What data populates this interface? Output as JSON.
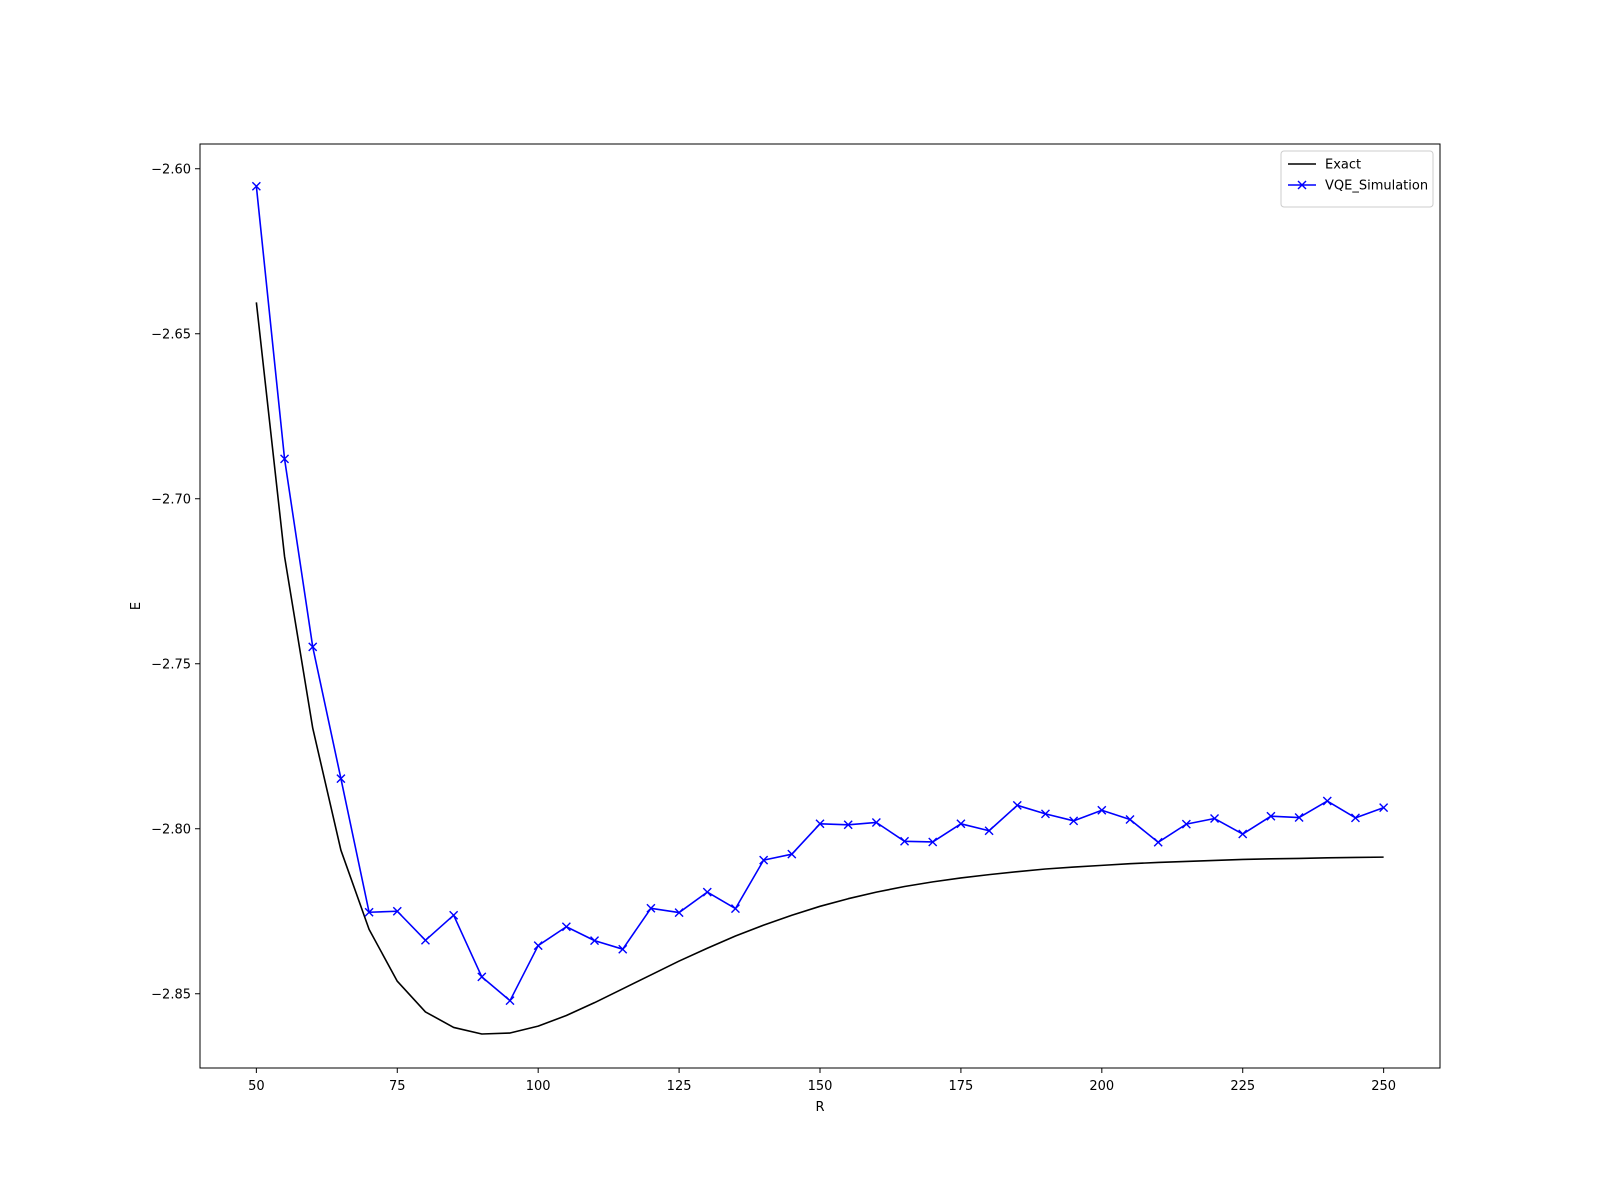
{
  "chart_data": {
    "type": "line",
    "title": "",
    "xlabel": "R",
    "ylabel": "E",
    "xlim": [
      40,
      260
    ],
    "ylim": [
      -2.8725,
      -2.5925
    ],
    "xticks": [
      50,
      75,
      100,
      125,
      150,
      175,
      200,
      225,
      250
    ],
    "xtick_labels": [
      "50",
      "75",
      "100",
      "125",
      "150",
      "175",
      "200",
      "225",
      "250"
    ],
    "yticks": [
      -2.6,
      -2.65,
      -2.7,
      -2.75,
      -2.8,
      -2.85
    ],
    "ytick_labels": [
      "−2.60",
      "−2.65",
      "−2.70",
      "−2.75",
      "−2.80",
      "−2.85"
    ],
    "grid": false,
    "legend_position": "top-right",
    "x": [
      50,
      55,
      60,
      65,
      70,
      75,
      80,
      85,
      90,
      95,
      100,
      105,
      110,
      115,
      120,
      125,
      130,
      135,
      140,
      145,
      150,
      155,
      160,
      165,
      170,
      175,
      180,
      185,
      190,
      195,
      200,
      205,
      210,
      215,
      220,
      225,
      230,
      235,
      240,
      245,
      250
    ],
    "series": [
      {
        "name": "Exact",
        "color": "#000000",
        "marker": "none",
        "values": [
          -2.6405,
          -2.7175,
          -2.7695,
          -2.8065,
          -2.8305,
          -2.8462,
          -2.8555,
          -2.8602,
          -2.8622,
          -2.8619,
          -2.8598,
          -2.8566,
          -2.8527,
          -2.8485,
          -2.8443,
          -2.8401,
          -2.8362,
          -2.8325,
          -2.8292,
          -2.8262,
          -2.8235,
          -2.8212,
          -2.8192,
          -2.8175,
          -2.8161,
          -2.8149,
          -2.8139,
          -2.813,
          -2.8122,
          -2.8116,
          -2.8111,
          -2.8106,
          -2.8102,
          -2.8099,
          -2.8096,
          -2.8093,
          -2.8091,
          -2.809,
          -2.8088,
          -2.8087,
          -2.8086
        ]
      },
      {
        "name": "VQE_Simulation",
        "color": "#0000ff",
        "marker": "x",
        "values": [
          -2.6053,
          -2.6879,
          -2.7449,
          -2.7848,
          -2.8253,
          -2.825,
          -2.8338,
          -2.8262,
          -2.8449,
          -2.8521,
          -2.8354,
          -2.8297,
          -2.8339,
          -2.8365,
          -2.8241,
          -2.8254,
          -2.8192,
          -2.8242,
          -2.8095,
          -2.8077,
          -2.7985,
          -2.7988,
          -2.7981,
          -2.8038,
          -2.804,
          -2.7985,
          -2.8006,
          -2.7929,
          -2.7955,
          -2.7976,
          -2.7944,
          -2.7972,
          -2.8041,
          -2.7986,
          -2.7969,
          -2.8016,
          -2.7962,
          -2.7966,
          -2.7916,
          -2.7967,
          -2.7936
        ]
      }
    ]
  }
}
